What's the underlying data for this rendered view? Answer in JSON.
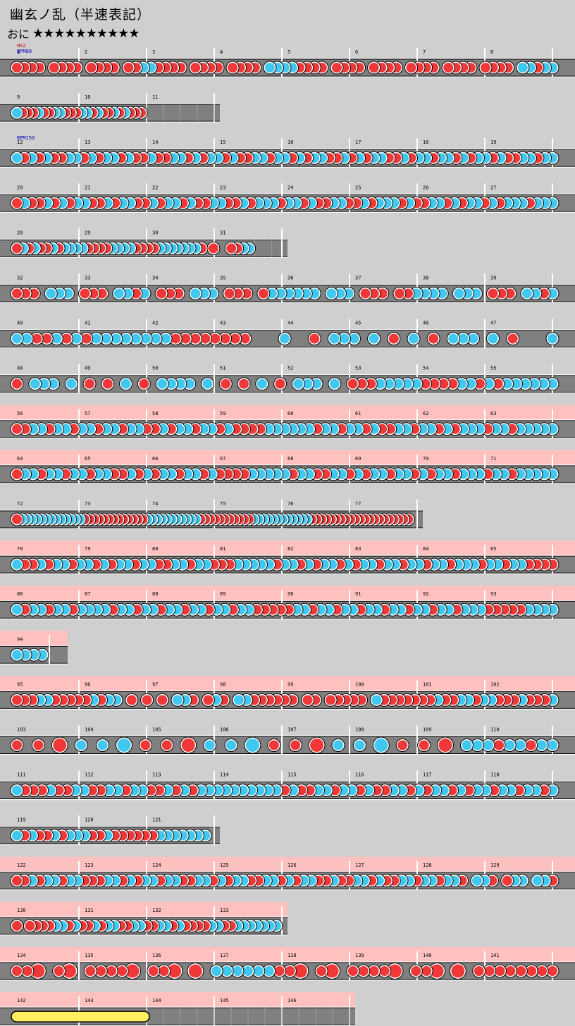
{
  "title": "幽玄ノ乱（半速表記）",
  "difficulty": {
    "label": "おに",
    "stars": "★★★★★★★★★★"
  },
  "colors": {
    "background": "#cfcfcf",
    "lane": "#808080",
    "gogo_band": "#ffc0c0",
    "don": "#f03838",
    "ka": "#40c8f0",
    "roll": "#fff060",
    "hs_text": "#d00000",
    "bpm_text": "#0000c0"
  },
  "rows": [
    {
      "measures": [
        1,
        2,
        3,
        4,
        5,
        6,
        7,
        8
      ],
      "gogo": false,
      "hs": "HS2",
      "bpm": "BPM80",
      "notes": [
        "rrrr.rrrr.rrrr.rrbbrrrr.rrrr.rrrr.bbbbrrrr.rrrr.rrrr.rrrr.rrrr.rrrr.bbrbb"
      ]
    },
    {
      "measures": [
        9,
        10,
        11
      ],
      "gogo": false,
      "empty_from": 11,
      "notes": [
        "brrrbrrbbrrrbbrbrrbrbrrr"
      ]
    },
    {
      "measures": [
        12,
        13,
        14,
        15,
        16,
        17,
        18,
        19
      ],
      "gogo": false,
      "bpm": "BPM150",
      "notes": [
        "brbrbrrbbrbrbbrbrrbrrbbrbrbbrbrrbbrbbrbrbbrrbrbrbbrrbrbbrbbrbrbbrbrrbbrbb"
      ]
    },
    {
      "measures": [
        20,
        21,
        22,
        23,
        24,
        25,
        26,
        27
      ],
      "gogo": false,
      "notes": [
        "rbrrbrbrbbrrbrbbrrbrbbrbrrbbrrbrbbbrbbrbrrbbrrbrbbbrbrrbbrbrbbrbrbbbrbbb"
      ]
    },
    {
      "measures": [
        28,
        29,
        30,
        31
      ],
      "gogo": false,
      "empty_from": 31.6,
      "notes": [
        "rbrbrrbrbbbbrrrrbbbbrrrrbbbbbbbr.r..rrbb"
      ]
    },
    {
      "measures": [
        32,
        33,
        34,
        35,
        36,
        37,
        38,
        39
      ],
      "gogo": false,
      "notes": [
        "rrr.bbb.rrr.bbrb.rrr.bbb.rrr.rbbbbbb.bbb.rrr.rrbbbb.bbb.rrr.bbrb"
      ]
    },
    {
      "measures": [
        40,
        41,
        42,
        43,
        44,
        45,
        46,
        47
      ],
      "gogo": false,
      "notes": [
        "bbrrbrbrbbbbbbbbrrrrrrrr...b..r.bbb.b.r.b.r.bbb.b.r...b"
      ]
    },
    {
      "measures": [
        48,
        49,
        50,
        51,
        52,
        53,
        54,
        55
      ],
      "gogo": false,
      "notes": [
        "r.bbb.b.r.r.b.r.bbbb.b.r.r.b.r.bbb.b.rrrbbbbbrrrrbbrbrbbbbbb"
      ]
    },
    {
      "measures": [
        56,
        57,
        58,
        59,
        60,
        61,
        62,
        63
      ],
      "gogo": true,
      "notes": [
        "rrbbrbbrbbrbbrbbrrbrbbrbbrbrrrrbbbbbbrbbrbbrbrrbbrbbrbrbbbrbbrbbbbb"
      ]
    },
    {
      "measures": [
        64,
        65,
        66,
        67,
        68,
        69,
        70,
        71
      ],
      "gogo": true,
      "notes": [
        "rbbrbbrbbrbbrrbrbrbbrbbrbrrrrbbbbbrbbrrbbrbrbbrbbrbrbbrbbbrbbrbbbbb"
      ]
    },
    {
      "measures": [
        72,
        73,
        74,
        75,
        76,
        77
      ],
      "gogo": false,
      "empty_from": 77.95,
      "notes": [
        "rbbbbbbbbbbbbbrrrrrrrrrrrrrbbbbbbbbbbbrrrrrrrrrrrbbbbbbbbbbbbrrrrrrrrrrrrrrrrrrrrr"
      ]
    },
    {
      "measures": [
        78,
        79,
        80,
        81,
        82,
        83,
        84,
        85
      ],
      "gogo": true,
      "notes": [
        "brrbrbbrbbrbrbbrbbrrbbrbbrrrbbbbbrbbrbrbbrbrbbrbbrbbrbbrbbbrbbrbbrrrr"
      ]
    },
    {
      "measures": [
        86,
        87,
        88,
        89,
        90,
        91,
        92,
        93
      ],
      "gogo": true,
      "notes": [
        "brbbrbbrbbbbrbbrbbrbbrbbrbbrbbrrrrrbbrbbrbbrbbrbbrbbrbbrbbbrrrrrbbbb"
      ]
    },
    {
      "measures": [
        94
      ],
      "gogo": true,
      "single": true,
      "notes": [
        "bbbb"
      ]
    },
    {
      "measures": [
        95,
        96,
        97,
        98,
        99,
        100,
        101,
        102
      ],
      "gogo": true,
      "notes": [
        "rrrbbrrrrrbrbb.r.r.r.bbr.rbr.bbrrrrrr.rr.rrrrr.brrrrrrrbrrbbrbbrrrbrrrb"
      ]
    },
    {
      "measures": [
        103,
        104,
        105,
        106,
        107,
        108,
        109,
        110
      ],
      "gogo": false,
      "notes": [
        "r.r.R.b.b.B.r.r.R.b.b.B.r.r.R.b.b.B.r.r.R.bbbrbbrbb"
      ]
    },
    {
      "measures": [
        111,
        112,
        113,
        114,
        115,
        116,
        117,
        118
      ],
      "gogo": false,
      "notes": [
        "brrrbrrbbrrbbrbbrrbrbrbbbbbbbbbbrbrrbbrbbrbrrbbrbrbbrbrbbrbbrbbrb"
      ]
    },
    {
      "measures": [
        119,
        120,
        121
      ],
      "gogo": false,
      "empty_from": 121.95,
      "notes": [
        "brbrrbrbbbrrbrrrrrrbbbbbbb"
      ]
    },
    {
      "measures": [
        122,
        123,
        124,
        125,
        126,
        127,
        128,
        129
      ],
      "gogo": true,
      "notes": [
        "rrbrbbrbbrrrbbrbrbbrbbrrbbrbrbbrrbbrbrbbrrbrrbbrbrrbbrbbrbbr.bbr.rbb.bbr"
      ]
    },
    {
      "measures": [
        130,
        131,
        132,
        133
      ],
      "gogo": true,
      "notes": [
        "r.rrrrbbrbrrbrbbrrbbrrbbrbrrrrbbrrbbbbbbb"
      ]
    },
    {
      "measures": [
        134,
        135,
        136,
        137,
        138,
        139,
        140,
        141
      ],
      "gogo": true,
      "notes": [
        "rrR.rR.rrrrR.rrR.R.bbbbbbrrR.rR.rrrrR.rrR.R.rrrrrrrr"
      ]
    },
    {
      "measures": [
        142,
        143,
        144,
        145,
        146
      ],
      "gogo": true,
      "roll_to": 144,
      "empty_from": 144,
      "notes": []
    }
  ]
}
